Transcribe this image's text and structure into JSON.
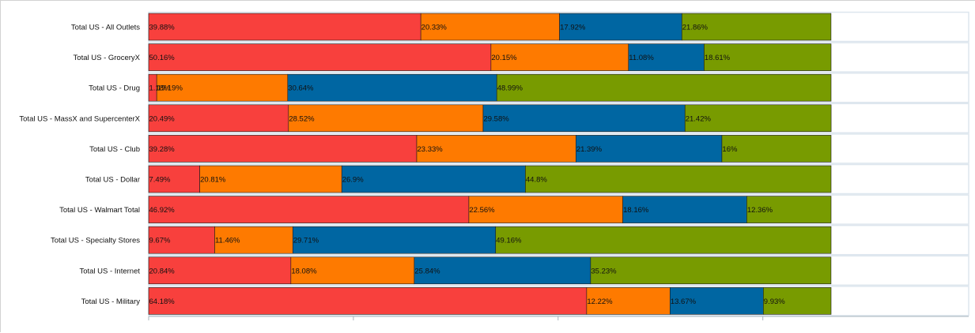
{
  "chart_data": {
    "type": "bar",
    "orientation": "horizontal",
    "stacked": "percent",
    "title": "",
    "xlabel": "",
    "ylabel": "",
    "xlim": [
      0,
      100
    ],
    "grid": false,
    "legend": "none",
    "categories": [
      "Total US - All Outlets",
      "Total US - GroceryX",
      "Total US - Drug",
      "Total US - MassX and SupercenterX",
      "Total US - Club",
      "Total US - Dollar",
      "Total US - Walmart Total",
      "Total US - Specialty Stores",
      "Total US - Internet",
      "Total US - Military"
    ],
    "series": [
      {
        "color": "#f8403d",
        "values": [
          39.88,
          50.16,
          1.18,
          20.49,
          39.28,
          7.49,
          46.92,
          9.67,
          20.84,
          64.18
        ],
        "labels": [
          "39.88%",
          "50.16%",
          "1.18%",
          "20.49%",
          "39.28%",
          "7.49%",
          "46.92%",
          "9.67%",
          "20.84%",
          "64.18%"
        ]
      },
      {
        "color": "#fe7a00",
        "values": [
          20.33,
          20.15,
          19.19,
          28.52,
          23.33,
          20.81,
          22.56,
          11.46,
          18.08,
          12.22
        ],
        "labels": [
          "20.33%",
          "20.15%",
          "19.19%",
          "28.52%",
          "23.33%",
          "20.81%",
          "22.56%",
          "11.46%",
          "18.08%",
          "12.22%"
        ]
      },
      {
        "color": "#0066a2",
        "values": [
          17.92,
          11.08,
          30.64,
          29.58,
          21.39,
          26.9,
          18.16,
          29.71,
          25.84,
          13.67
        ],
        "labels": [
          "17.92%",
          "11.08%",
          "30.64%",
          "29.58%",
          "21.39%",
          "26.9%",
          "18.16%",
          "29.71%",
          "25.84%",
          "13.67%"
        ]
      },
      {
        "color": "#789b00",
        "values": [
          21.86,
          18.61,
          48.99,
          21.42,
          16,
          44.8,
          12.36,
          49.16,
          35.23,
          9.93
        ],
        "labels": [
          "21.86%",
          "18.61%",
          "48.99%",
          "21.42%",
          "16%",
          "44.8%",
          "12.36%",
          "49.16%",
          "35.23%",
          "9.93%"
        ]
      }
    ]
  }
}
